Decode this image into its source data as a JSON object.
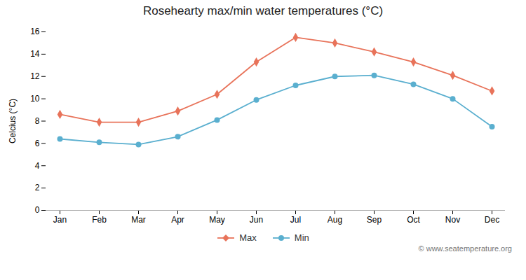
{
  "chart_data": {
    "type": "line",
    "title": "Rosehearty max/min water temperatures (°C)",
    "ylabel": "Celcius (°C)",
    "categories": [
      "Jan",
      "Feb",
      "Mar",
      "Apr",
      "May",
      "Jun",
      "Jul",
      "Aug",
      "Sep",
      "Oct",
      "Nov",
      "Dec"
    ],
    "series": [
      {
        "name": "Max",
        "color": "#e8735a",
        "marker": "diamond",
        "values": [
          8.6,
          7.9,
          7.9,
          8.9,
          10.4,
          13.3,
          15.5,
          15.0,
          14.2,
          13.3,
          12.1,
          10.7
        ]
      },
      {
        "name": "Min",
        "color": "#5aafcf",
        "marker": "circle",
        "values": [
          6.4,
          6.1,
          5.9,
          6.6,
          8.1,
          9.9,
          11.2,
          12.0,
          12.1,
          11.3,
          10.0,
          7.5
        ]
      }
    ],
    "ylim": [
      0,
      16
    ],
    "yticks": [
      0,
      2,
      4,
      6,
      8,
      10,
      12,
      14,
      16
    ],
    "legend": "bottom",
    "annotations": [
      "© www.seatemperature.org"
    ]
  }
}
